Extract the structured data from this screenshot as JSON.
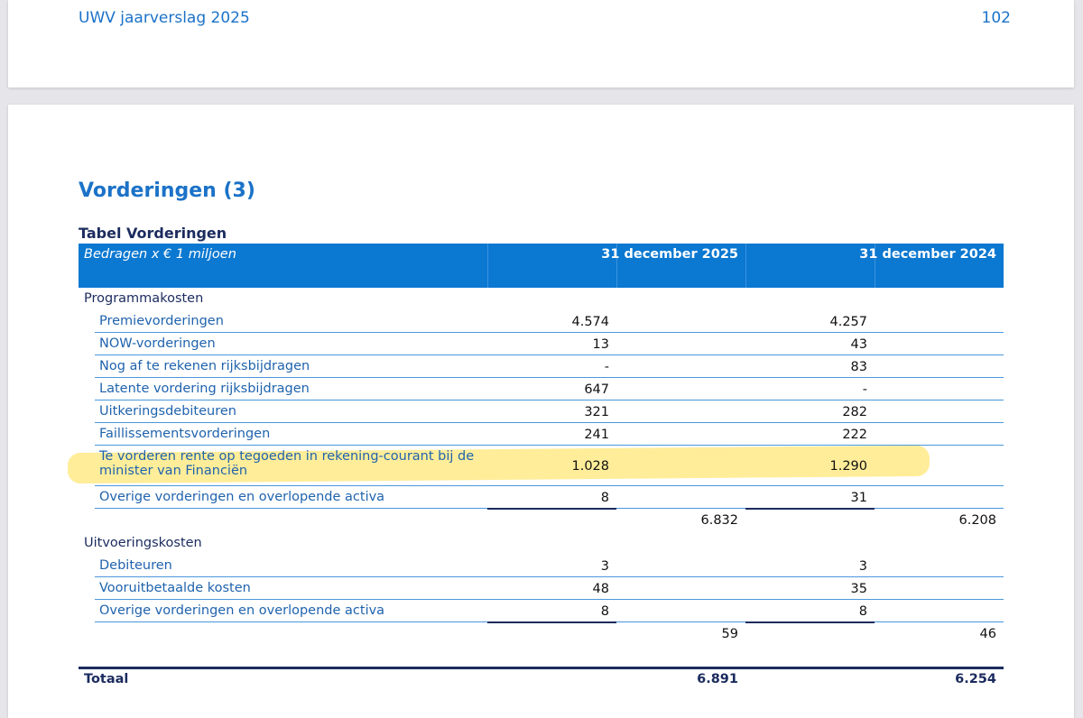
{
  "header": {
    "title": "UWV jaarverslag 2025",
    "page": "102"
  },
  "section_title": "Vorderingen (3)",
  "table": {
    "title": "Tabel Vorderingen",
    "caption": "Bedragen x € 1 miljoen",
    "columns": [
      "31 december 2025",
      "31 december 2024"
    ],
    "groups": [
      {
        "label": "Programmakosten",
        "items": [
          {
            "label": "Premievorderingen",
            "values": [
              "4.574",
              "4.257"
            ]
          },
          {
            "label": "NOW-vorderingen",
            "values": [
              "13",
              "43"
            ]
          },
          {
            "label": "Nog af te rekenen rijksbijdragen",
            "values": [
              "-",
              "83"
            ]
          },
          {
            "label": "Latente vordering rijksbijdragen",
            "values": [
              "647",
              "-"
            ]
          },
          {
            "label": "Uitkeringsdebiteuren",
            "values": [
              "321",
              "282"
            ]
          },
          {
            "label": "Faillissementsvorderingen",
            "values": [
              "241",
              "222"
            ]
          },
          {
            "label": "Te vorderen rente op tegoeden in rekening-courant bij de minister van Financiën",
            "values": [
              "1.028",
              "1.290"
            ]
          },
          {
            "label": "Overige vorderingen en overlopende activa",
            "values": [
              "8",
              "31"
            ]
          }
        ],
        "subtotal": [
          "6.832",
          "6.208"
        ]
      },
      {
        "label": "Uitvoeringskosten",
        "items": [
          {
            "label": "Debiteuren",
            "values": [
              "3",
              "3"
            ]
          },
          {
            "label": "Vooruitbetaalde kosten",
            "values": [
              "48",
              "35"
            ]
          },
          {
            "label": "Overige vorderingen en overlopende activa",
            "values": [
              "8",
              "8"
            ]
          }
        ],
        "subtotal": [
          "59",
          "46"
        ]
      }
    ],
    "total": {
      "label": "Totaal",
      "values": [
        "6.891",
        "6.254"
      ]
    }
  }
}
